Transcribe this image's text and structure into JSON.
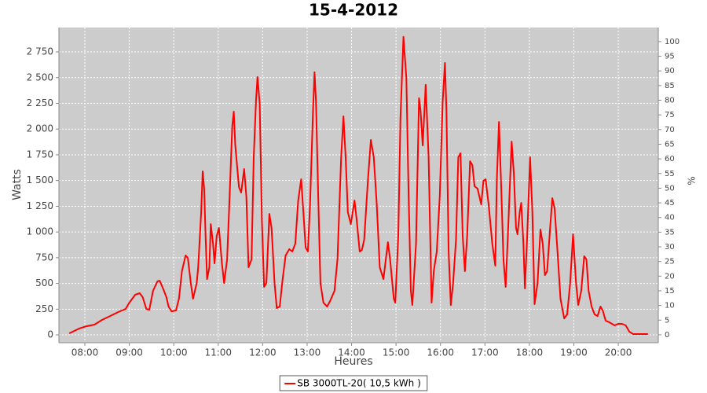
{
  "chart_data": {
    "type": "line",
    "title": "15-4-2012",
    "x_label": "Heures",
    "y_label": "Watts",
    "y2_label": "%",
    "x": [
      "07:39",
      "07:52",
      "08:02",
      "08:13",
      "08:23",
      "08:34",
      "08:45",
      "08:55",
      "09:00",
      "09:08",
      "09:14",
      "09:18",
      "09:23",
      "09:27",
      "09:32",
      "09:38",
      "09:41",
      "09:46",
      "09:50",
      "09:53",
      "09:57",
      "10:03",
      "10:07",
      "10:11",
      "10:16",
      "10:19",
      "10:23",
      "10:26",
      "10:31",
      "10:33",
      "10:37",
      "10:39",
      "10:41",
      "10:43",
      "10:45",
      "10:48",
      "10:50",
      "10:53",
      "10:55",
      "10:58",
      "11:01",
      "11:05",
      "11:08",
      "11:12",
      "11:15",
      "11:19",
      "11:21",
      "11:23",
      "11:28",
      "11:31",
      "11:35",
      "11:38",
      "11:41",
      "11:45",
      "11:48",
      "11:51",
      "11:53",
      "11:56",
      "11:59",
      "12:02",
      "12:05",
      "12:09",
      "12:12",
      "12:16",
      "12:19",
      "12:23",
      "12:27",
      "12:31",
      "12:36",
      "12:40",
      "12:44",
      "12:48",
      "12:52",
      "12:55",
      "12:58",
      "13:01",
      "13:04",
      "13:08",
      "13:10",
      "13:12",
      "13:15",
      "13:18",
      "13:22",
      "13:27",
      "13:31",
      "13:37",
      "13:41",
      "13:46",
      "13:49",
      "13:52",
      "13:55",
      "13:59",
      "14:04",
      "14:07",
      "14:11",
      "14:14",
      "14:17",
      "14:22",
      "14:26",
      "14:30",
      "14:34",
      "14:38",
      "14:43",
      "14:49",
      "14:52",
      "14:57",
      "14:59",
      "15:03",
      "15:06",
      "15:10",
      "15:14",
      "15:17",
      "15:20",
      "15:22",
      "15:27",
      "15:31",
      "15:33",
      "15:36",
      "15:40",
      "15:44",
      "15:48",
      "15:51",
      "15:55",
      "15:59",
      "16:03",
      "16:06",
      "16:08",
      "16:11",
      "16:14",
      "16:17",
      "16:21",
      "16:24",
      "16:27",
      "16:30",
      "16:33",
      "16:36",
      "16:40",
      "16:43",
      "16:46",
      "16:50",
      "16:55",
      "16:58",
      "17:01",
      "17:05",
      "17:10",
      "17:14",
      "17:16",
      "17:19",
      "17:22",
      "17:25",
      "17:28",
      "17:31",
      "17:36",
      "17:39",
      "17:42",
      "17:44",
      "17:47",
      "17:49",
      "17:52",
      "17:54",
      "17:57",
      "18:01",
      "18:04",
      "18:07",
      "18:11",
      "18:15",
      "18:18",
      "18:21",
      "18:24",
      "18:28",
      "18:31",
      "18:34",
      "18:38",
      "18:42",
      "18:47",
      "18:51",
      "18:55",
      "18:59",
      "19:03",
      "19:06",
      "19:10",
      "19:14",
      "19:17",
      "19:20",
      "19:24",
      "19:28",
      "19:32",
      "19:36",
      "19:39",
      "19:43",
      "19:48",
      "19:55",
      "20:00",
      "20:05",
      "20:10",
      "20:15",
      "20:20",
      "20:30",
      "20:40"
    ],
    "series": [
      {
        "name": "SB 3000TL-20( 10,5 kWh )",
        "color": "#ff0000",
        "values": [
          15,
          61,
          84,
          100,
          145,
          183,
          222,
          252,
          313,
          390,
          405,
          367,
          252,
          245,
          428,
          520,
          527,
          443,
          367,
          275,
          229,
          237,
          351,
          619,
          772,
          749,
          504,
          351,
          504,
          657,
          1192,
          1589,
          1421,
          963,
          542,
          657,
          1077,
          886,
          695,
          963,
          1039,
          695,
          504,
          733,
          1268,
          2032,
          2170,
          1841,
          1436,
          1383,
          1612,
          1345,
          657,
          733,
          1727,
          2277,
          2506,
          2246,
          1115,
          466,
          504,
          1176,
          1039,
          504,
          260,
          275,
          542,
          772,
          833,
          810,
          886,
          1306,
          1512,
          1192,
          848,
          810,
          1268,
          2185,
          2552,
          2261,
          1345,
          504,
          313,
          275,
          329,
          428,
          733,
          1727,
          2124,
          1727,
          1192,
          1077,
          1306,
          1115,
          810,
          825,
          924,
          1497,
          1895,
          1727,
          1268,
          657,
          542,
          901,
          733,
          351,
          313,
          963,
          2109,
          2896,
          2491,
          1345,
          428,
          290,
          886,
          2300,
          2185,
          1841,
          2430,
          1727,
          313,
          619,
          810,
          1345,
          2261,
          2643,
          2185,
          810,
          290,
          504,
          924,
          1727,
          1765,
          963,
          619,
          963,
          1688,
          1650,
          1444,
          1421,
          1268,
          1497,
          1512,
          1268,
          886,
          672,
          1497,
          2070,
          1421,
          733,
          466,
          963,
          1879,
          1574,
          1039,
          978,
          1192,
          1283,
          886,
          451,
          963,
          1727,
          1192,
          298,
          504,
          1024,
          886,
          581,
          619,
          1039,
          1329,
          1230,
          810,
          351,
          160,
          199,
          504,
          978,
          504,
          290,
          428,
          764,
          733,
          428,
          275,
          199,
          183,
          275,
          237,
          138,
          122,
          92,
          107,
          107,
          92,
          31,
          8,
          8,
          8
        ]
      }
    ],
    "xlim": [
      "07:25",
      "20:54"
    ],
    "xticks": [
      "08:00",
      "09:00",
      "10:00",
      "11:00",
      "12:00",
      "13:00",
      "14:00",
      "15:00",
      "16:00",
      "17:00",
      "18:00",
      "19:00",
      "20:00"
    ],
    "ylim": [
      -76,
      2987
    ],
    "yticks": [
      0,
      250,
      500,
      750,
      {
        "value": 1000,
        "label": "1 000"
      },
      {
        "value": 1250,
        "label": "1 250"
      },
      {
        "value": 1500,
        "label": "1 500"
      },
      {
        "value": 1750,
        "label": "1 750"
      },
      {
        "value": 2000,
        "label": "2 000"
      },
      {
        "value": 2250,
        "label": "2 250"
      },
      {
        "value": 2500,
        "label": "2 500"
      },
      {
        "value": 2750,
        "label": "2 750"
      }
    ],
    "y2lim": [
      -2.7,
      104.8
    ],
    "y2ticks": [
      0,
      5,
      10,
      15,
      20,
      25,
      30,
      35,
      40,
      45,
      50,
      55,
      60,
      65,
      70,
      75,
      80,
      85,
      90,
      95,
      100
    ],
    "grid": true,
    "legend": "bottom"
  }
}
